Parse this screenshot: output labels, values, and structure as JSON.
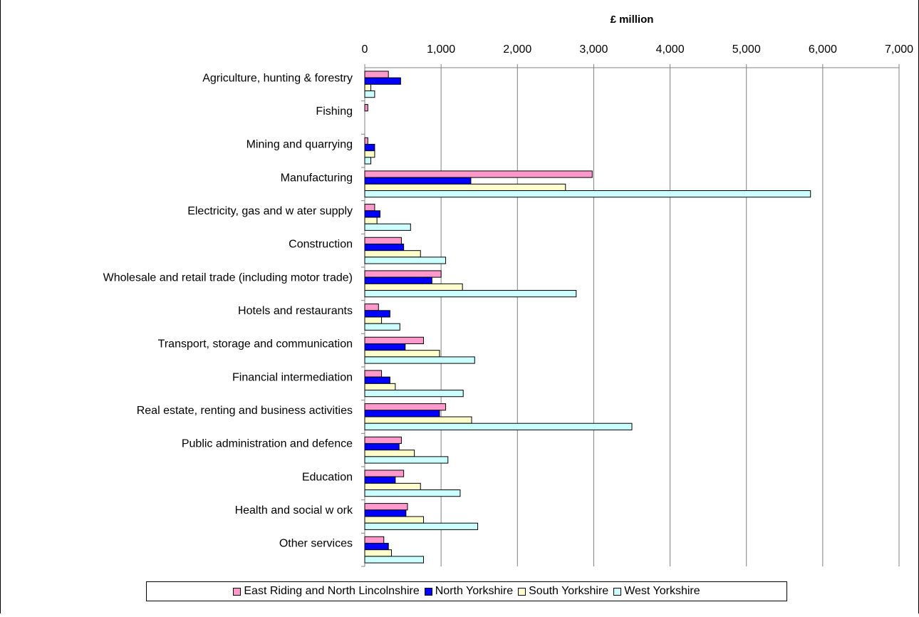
{
  "chart_data": {
    "type": "bar",
    "orientation": "horizontal",
    "title": "£ million",
    "xlim": [
      0,
      7000
    ],
    "ticks": [
      0,
      1000,
      2000,
      3000,
      4000,
      5000,
      6000,
      7000
    ],
    "tick_labels": [
      "0",
      "1,000",
      "2,000",
      "3,000",
      "4,000",
      "5,000",
      "6,000",
      "7,000"
    ],
    "grid": true,
    "legend_position": "bottom",
    "categories": [
      "Agriculture, hunting & forestry",
      "Fishing",
      "Mining and quarrying",
      "Manufacturing",
      "Electricity, gas and w ater supply",
      "Construction",
      "Wholesale and retail trade (including motor trade)",
      "Hotels and restaurants",
      "Transport, storage and communication",
      "Financial intermediation",
      "Real estate, renting and business activities",
      "Public administration and defence",
      "Education",
      "Health and social w ork",
      "Other services"
    ],
    "series": [
      {
        "name": "East Riding and North Lincolnshire",
        "color": "#FF99CC",
        "values": [
          310,
          40,
          40,
          2980,
          130,
          480,
          1000,
          180,
          770,
          220,
          1060,
          480,
          510,
          560,
          250
        ]
      },
      {
        "name": "North Yorkshire",
        "color": "#0000FF",
        "values": [
          470,
          0,
          130,
          1390,
          200,
          510,
          880,
          330,
          530,
          330,
          980,
          450,
          400,
          540,
          310
        ]
      },
      {
        "name": "South Yorkshire",
        "color": "#FFFFCC",
        "values": [
          80,
          0,
          130,
          2630,
          160,
          730,
          1280,
          220,
          980,
          400,
          1400,
          650,
          730,
          770,
          350
        ]
      },
      {
        "name": "West Yorkshire",
        "color": "#CCFFFF",
        "values": [
          130,
          0,
          80,
          5840,
          600,
          1060,
          2770,
          460,
          1440,
          1290,
          3500,
          1090,
          1250,
          1480,
          770
        ]
      }
    ]
  }
}
